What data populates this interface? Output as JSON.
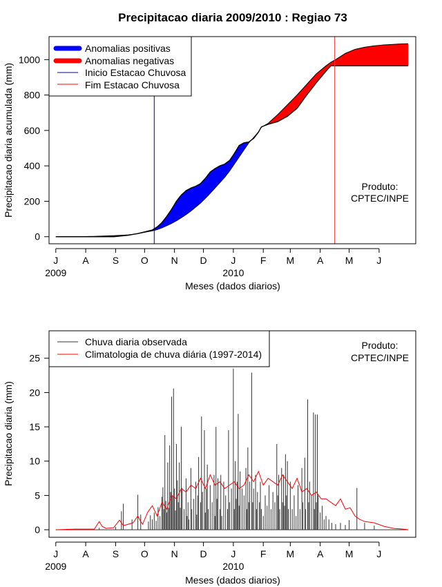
{
  "figure": {
    "title": "Precipitacao diaria 2009/2010 : Regiao 73"
  },
  "chart_data": [
    {
      "type": "area",
      "title": "Precipitacao diaria 2009/2010 : Regiao 73",
      "xlabel": "Meses (dados diarios)",
      "ylabel": "Precipitacao diaria acumulada (mm)",
      "x_unit": "days since 1 July 2009",
      "xlim": [
        -7,
        373
      ],
      "ylim": [
        -40,
        1130
      ],
      "x_ticks": [
        {
          "day": 0,
          "label": "J"
        },
        {
          "day": 31,
          "label": "A"
        },
        {
          "day": 62,
          "label": "S"
        },
        {
          "day": 92,
          "label": "O"
        },
        {
          "day": 123,
          "label": "N"
        },
        {
          "day": 153,
          "label": "D"
        },
        {
          "day": 184,
          "label": "J"
        },
        {
          "day": 215,
          "label": "F"
        },
        {
          "day": 243,
          "label": "M"
        },
        {
          "day": 274,
          "label": "A"
        },
        {
          "day": 304,
          "label": "M"
        },
        {
          "day": 335,
          "label": "J"
        }
      ],
      "year_labels": [
        {
          "day": 0,
          "label": "2009"
        },
        {
          "day": 184,
          "label": "2010"
        }
      ],
      "y_ticks": [
        0,
        200,
        400,
        600,
        800,
        1000
      ],
      "legend": {
        "position": "top-left",
        "entries": [
          {
            "label": "Anomalias positivas",
            "color": "#0000ff",
            "style": "thick"
          },
          {
            "label": "Anomalias negativas",
            "color": "#ff0000",
            "style": "thick"
          },
          {
            "label": "Inicio Estacao Chuvosa",
            "color": "#00008b",
            "style": "thin"
          },
          {
            "label": "Fim Estacao Chuvosa",
            "color": "#ff0000",
            "style": "thin"
          }
        ]
      },
      "season_start_day": 102,
      "season_end_day": 289,
      "season_start_color": "#00008b",
      "season_end_color": "#ff3333",
      "positive_color": "#0000ff",
      "negative_color": "#ff0000",
      "observed_cumulative": {
        "x": [
          0,
          15,
          30,
          40,
          50,
          60,
          75,
          85,
          92,
          100,
          105,
          110,
          115,
          120,
          125,
          130,
          135,
          140,
          145,
          150,
          155,
          160,
          165,
          170,
          175,
          180,
          185,
          190,
          195,
          200,
          205,
          210,
          213,
          220,
          230,
          240,
          250,
          260,
          270,
          280,
          285,
          290,
          300,
          310,
          320,
          330,
          340,
          350,
          355,
          360,
          365
        ],
        "y": [
          0,
          0,
          0,
          0,
          0,
          0,
          8,
          18,
          27,
          38,
          55,
          80,
          115,
          155,
          200,
          235,
          260,
          275,
          285,
          300,
          330,
          365,
          385,
          400,
          410,
          430,
          470,
          515,
          530,
          535,
          555,
          590,
          620,
          635,
          650,
          680,
          725,
          800,
          870,
          935,
          965,
          965,
          965,
          965,
          965,
          965,
          965,
          965,
          965,
          965,
          965
        ]
      },
      "climatology_cumulative": {
        "x": [
          0,
          15,
          30,
          40,
          50,
          60,
          75,
          85,
          92,
          100,
          105,
          110,
          115,
          120,
          125,
          130,
          135,
          140,
          145,
          150,
          155,
          160,
          165,
          170,
          175,
          180,
          185,
          190,
          195,
          200,
          205,
          210,
          213,
          220,
          230,
          240,
          250,
          260,
          270,
          280,
          285,
          290,
          300,
          310,
          320,
          330,
          340,
          350,
          355,
          360,
          365
        ],
        "y": [
          0,
          0,
          1,
          2,
          4,
          6,
          10,
          17,
          25,
          33,
          40,
          50,
          62,
          75,
          90,
          107,
          125,
          145,
          167,
          190,
          217,
          245,
          275,
          305,
          335,
          370,
          410,
          450,
          490,
          530,
          560,
          592,
          618,
          640,
          690,
          745,
          800,
          860,
          920,
          965,
          985,
          1000,
          1035,
          1058,
          1070,
          1078,
          1083,
          1086,
          1088,
          1089,
          1090
        ]
      },
      "annotation": {
        "lines": [
          "Produto:",
          "CPTEC/INPE"
        ],
        "position": "right"
      }
    },
    {
      "type": "bar",
      "xlabel": "Meses (dados diarios)",
      "ylabel": "Precipitacao diaria (mm)",
      "x_unit": "days since 1 July 2009",
      "xlim": [
        -7,
        373
      ],
      "ylim": [
        -1.1,
        29
      ],
      "x_ticks": [
        {
          "day": 0,
          "label": "J"
        },
        {
          "day": 31,
          "label": "A"
        },
        {
          "day": 62,
          "label": "S"
        },
        {
          "day": 92,
          "label": "O"
        },
        {
          "day": 123,
          "label": "N"
        },
        {
          "day": 153,
          "label": "D"
        },
        {
          "day": 184,
          "label": "J"
        },
        {
          "day": 215,
          "label": "F"
        },
        {
          "day": 243,
          "label": "M"
        },
        {
          "day": 274,
          "label": "A"
        },
        {
          "day": 304,
          "label": "M"
        },
        {
          "day": 335,
          "label": "J"
        }
      ],
      "year_labels": [
        {
          "day": 0,
          "label": "2009"
        },
        {
          "day": 184,
          "label": "2010"
        }
      ],
      "y_ticks": [
        0,
        5,
        10,
        15,
        20,
        25
      ],
      "legend": {
        "position": "top-left",
        "entries": [
          {
            "label": "Chuva diaria observada",
            "color": "#333333",
            "style": "thin"
          },
          {
            "label": "Climatologia de chuva diária (1997-2014)",
            "color": "#ff0000",
            "style": "thin"
          }
        ]
      },
      "observed_color": "#333333",
      "climatology_color": "#ff0000",
      "observed_daily": [
        {
          "day": 45,
          "value": 0.3
        },
        {
          "day": 62,
          "value": 0.4
        },
        {
          "day": 68,
          "value": 2.7
        },
        {
          "day": 70,
          "value": 3.8
        },
        {
          "day": 79,
          "value": 1.5
        },
        {
          "day": 85,
          "value": 5.1
        },
        {
          "day": 88,
          "value": 2.2
        },
        {
          "day": 96,
          "value": 1.2
        },
        {
          "day": 98,
          "value": 2.1
        },
        {
          "day": 100,
          "value": 1.5
        },
        {
          "day": 102,
          "value": 2.5
        },
        {
          "day": 104,
          "value": 1.3
        },
        {
          "day": 106,
          "value": 3.3
        },
        {
          "day": 108,
          "value": 2.0
        },
        {
          "day": 110,
          "value": 4.8
        },
        {
          "day": 111,
          "value": 6.2
        },
        {
          "day": 112,
          "value": 3.0
        },
        {
          "day": 113,
          "value": 13.8
        },
        {
          "day": 114,
          "value": 4.2
        },
        {
          "day": 115,
          "value": 2.5
        },
        {
          "day": 116,
          "value": 9.8
        },
        {
          "day": 117,
          "value": 3.2
        },
        {
          "day": 118,
          "value": 12.3
        },
        {
          "day": 119,
          "value": 5.5
        },
        {
          "day": 120,
          "value": 19.4
        },
        {
          "day": 121,
          "value": 5.0
        },
        {
          "day": 122,
          "value": 20.6
        },
        {
          "day": 123,
          "value": 6.0
        },
        {
          "day": 124,
          "value": 2.8
        },
        {
          "day": 125,
          "value": 12.5
        },
        {
          "day": 126,
          "value": 7.2
        },
        {
          "day": 127,
          "value": 4.0
        },
        {
          "day": 128,
          "value": 9.8
        },
        {
          "day": 129,
          "value": 3.2
        },
        {
          "day": 130,
          "value": 15.0
        },
        {
          "day": 131,
          "value": 6.1
        },
        {
          "day": 133,
          "value": 3.0
        },
        {
          "day": 135,
          "value": 7.5
        },
        {
          "day": 136,
          "value": 2.0
        },
        {
          "day": 137,
          "value": 4.0
        },
        {
          "day": 138,
          "value": 1.5
        },
        {
          "day": 140,
          "value": 9.0
        },
        {
          "day": 141,
          "value": 3.0
        },
        {
          "day": 143,
          "value": 4.5
        },
        {
          "day": 145,
          "value": 7.0
        },
        {
          "day": 146,
          "value": 2.2
        },
        {
          "day": 147,
          "value": 5.0
        },
        {
          "day": 148,
          "value": 10.6
        },
        {
          "day": 150,
          "value": 4.0
        },
        {
          "day": 151,
          "value": 16.5
        },
        {
          "day": 152,
          "value": 5.5
        },
        {
          "day": 154,
          "value": 14.5
        },
        {
          "day": 155,
          "value": 2.5
        },
        {
          "day": 156,
          "value": 6.0
        },
        {
          "day": 157,
          "value": 9.5
        },
        {
          "day": 158,
          "value": 3.0
        },
        {
          "day": 160,
          "value": 6.5
        },
        {
          "day": 162,
          "value": 4.0
        },
        {
          "day": 164,
          "value": 8.0
        },
        {
          "day": 165,
          "value": 2.0
        },
        {
          "day": 166,
          "value": 15.0
        },
        {
          "day": 167,
          "value": 4.5
        },
        {
          "day": 168,
          "value": 7.5
        },
        {
          "day": 170,
          "value": 3.0
        },
        {
          "day": 171,
          "value": 8.0
        },
        {
          "day": 172,
          "value": 2.0
        },
        {
          "day": 174,
          "value": 7.0
        },
        {
          "day": 176,
          "value": 5.0
        },
        {
          "day": 178,
          "value": 3.0
        },
        {
          "day": 179,
          "value": 14.5
        },
        {
          "day": 180,
          "value": 4.0
        },
        {
          "day": 182,
          "value": 6.0
        },
        {
          "day": 184,
          "value": 23.5
        },
        {
          "day": 185,
          "value": 3.0
        },
        {
          "day": 186,
          "value": 10.0
        },
        {
          "day": 187,
          "value": 4.5
        },
        {
          "day": 188,
          "value": 7.0
        },
        {
          "day": 189,
          "value": 16.9
        },
        {
          "day": 190,
          "value": 3.5
        },
        {
          "day": 191,
          "value": 8.5
        },
        {
          "day": 193,
          "value": 6.0
        },
        {
          "day": 195,
          "value": 5.0
        },
        {
          "day": 197,
          "value": 9.0
        },
        {
          "day": 198,
          "value": 3.0
        },
        {
          "day": 199,
          "value": 12.0
        },
        {
          "day": 200,
          "value": 4.0
        },
        {
          "day": 201,
          "value": 7.0
        },
        {
          "day": 203,
          "value": 22.9
        },
        {
          "day": 204,
          "value": 4.0
        },
        {
          "day": 205,
          "value": 6.0
        },
        {
          "day": 207,
          "value": 8.0
        },
        {
          "day": 208,
          "value": 3.0
        },
        {
          "day": 209,
          "value": 5.5
        },
        {
          "day": 211,
          "value": 4.0
        },
        {
          "day": 212,
          "value": 7.0
        },
        {
          "day": 213,
          "value": 3.0
        },
        {
          "day": 215,
          "value": 2.0
        },
        {
          "day": 217,
          "value": 5.0
        },
        {
          "day": 219,
          "value": 3.5
        },
        {
          "day": 221,
          "value": 6.5
        },
        {
          "day": 223,
          "value": 3.0
        },
        {
          "day": 225,
          "value": 5.5
        },
        {
          "day": 227,
          "value": 4.0
        },
        {
          "day": 229,
          "value": 12.5
        },
        {
          "day": 230,
          "value": 5.0
        },
        {
          "day": 231,
          "value": 8.0
        },
        {
          "day": 232,
          "value": 3.0
        },
        {
          "day": 234,
          "value": 9.0
        },
        {
          "day": 235,
          "value": 4.0
        },
        {
          "day": 236,
          "value": 8.0
        },
        {
          "day": 237,
          "value": 3.5
        },
        {
          "day": 238,
          "value": 11.0
        },
        {
          "day": 239,
          "value": 5.0
        },
        {
          "day": 240,
          "value": 10.0
        },
        {
          "day": 241,
          "value": 3.0
        },
        {
          "day": 243,
          "value": 7.0
        },
        {
          "day": 245,
          "value": 3.0
        },
        {
          "day": 247,
          "value": 5.0
        },
        {
          "day": 249,
          "value": 2.0
        },
        {
          "day": 251,
          "value": 6.5
        },
        {
          "day": 253,
          "value": 3.0
        },
        {
          "day": 255,
          "value": 9.0
        },
        {
          "day": 256,
          "value": 4.0
        },
        {
          "day": 258,
          "value": 10.5
        },
        {
          "day": 259,
          "value": 3.0
        },
        {
          "day": 261,
          "value": 19.0
        },
        {
          "day": 262,
          "value": 4.0
        },
        {
          "day": 263,
          "value": 7.0
        },
        {
          "day": 265,
          "value": 5.0
        },
        {
          "day": 267,
          "value": 17.1
        },
        {
          "day": 268,
          "value": 3.0
        },
        {
          "day": 269,
          "value": 16.8
        },
        {
          "day": 270,
          "value": 4.0
        },
        {
          "day": 271,
          "value": 16.8
        },
        {
          "day": 272,
          "value": 5.0
        },
        {
          "day": 274,
          "value": 2.5
        },
        {
          "day": 276,
          "value": 3.5
        },
        {
          "day": 278,
          "value": 1.5
        },
        {
          "day": 280,
          "value": 2.0
        },
        {
          "day": 283,
          "value": 1.5
        },
        {
          "day": 286,
          "value": 1.0
        },
        {
          "day": 290,
          "value": 0.8
        },
        {
          "day": 295,
          "value": 1.0
        },
        {
          "day": 300,
          "value": 0.7
        },
        {
          "day": 304,
          "value": 1.4
        },
        {
          "day": 312,
          "value": 6.1
        },
        {
          "day": 320,
          "value": 1.0
        },
        {
          "day": 330,
          "value": 0.6
        }
      ],
      "climatology_daily": {
        "x": [
          0,
          20,
          40,
          45,
          48,
          52,
          60,
          66,
          70,
          80,
          85,
          88,
          90,
          95,
          100,
          105,
          110,
          115,
          120,
          125,
          130,
          135,
          140,
          145,
          150,
          155,
          160,
          165,
          170,
          175,
          180,
          185,
          190,
          195,
          200,
          205,
          210,
          215,
          220,
          225,
          230,
          235,
          240,
          245,
          250,
          255,
          260,
          265,
          270,
          275,
          280,
          285,
          290,
          295,
          300,
          305,
          310,
          315,
          320,
          330,
          340,
          350,
          360,
          365
        ],
        "y": [
          0.0,
          0.1,
          0.1,
          1.2,
          0.5,
          0.2,
          0.3,
          1.4,
          0.6,
          1.0,
          2.0,
          1.2,
          0.8,
          2.5,
          3.5,
          2.0,
          4.0,
          3.0,
          5.0,
          4.5,
          6.0,
          5.5,
          6.5,
          6.0,
          7.5,
          6.0,
          8.0,
          6.5,
          7.0,
          6.0,
          6.5,
          7.0,
          6.0,
          6.5,
          8.0,
          7.0,
          8.5,
          6.5,
          7.5,
          7.0,
          6.5,
          8.0,
          7.0,
          6.0,
          7.5,
          5.5,
          6.0,
          5.0,
          5.5,
          4.5,
          4.5,
          4.0,
          3.5,
          4.5,
          3.0,
          3.2,
          2.0,
          1.5,
          1.2,
          1.0,
          0.5,
          0.2,
          0.1,
          0.0
        ]
      },
      "annotation": {
        "lines": [
          "Produto:",
          "CPTEC/INPE"
        ],
        "position": "top-right"
      }
    }
  ]
}
